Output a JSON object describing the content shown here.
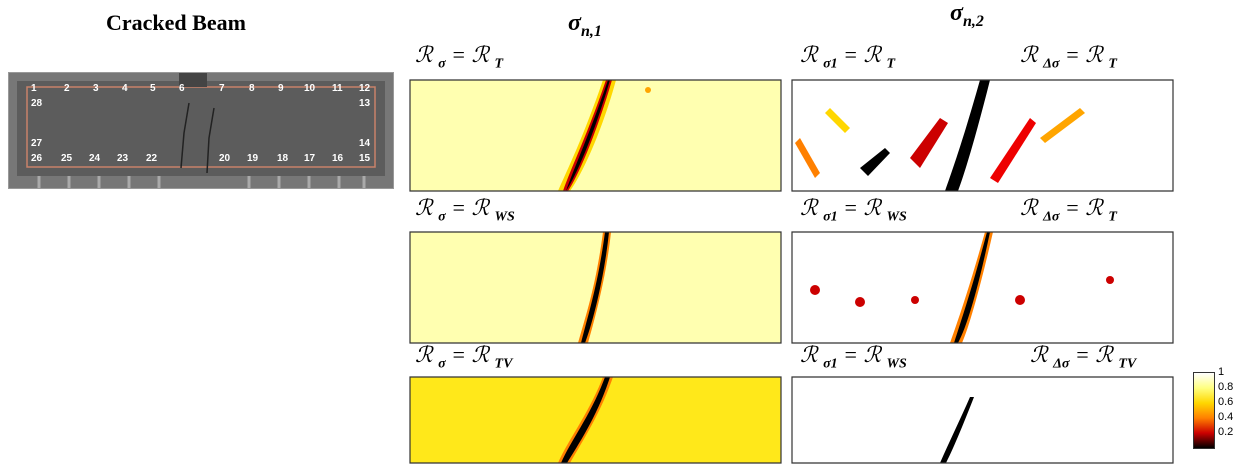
{
  "titles": {
    "cracked_beam": "Cracked Beam",
    "col1": "σ",
    "col1_sub": "n,1",
    "col2": "σ",
    "col2_sub": "n,2"
  },
  "beam_nodes": [
    "1",
    "2",
    "3",
    "4",
    "5",
    "6",
    "7",
    "8",
    "9",
    "10",
    "11",
    "12",
    "13",
    "14",
    "15",
    "16",
    "17",
    "18",
    "19",
    "20",
    "22",
    "23",
    "24",
    "25",
    "26",
    "27",
    "28"
  ],
  "panel_labels": {
    "r_sym": "ℛ",
    "sigma": "σ",
    "sigma1": "σ",
    "sigma1_sub": "1",
    "dsigma": "Δσ",
    "eq": "=",
    "T": "T",
    "WS": "WS",
    "TV": "TV"
  },
  "colorbar": {
    "ticks": [
      "1",
      "0.8",
      "0.6",
      "0.4",
      "0.2"
    ],
    "colors": [
      "#ffffff",
      "#ffff80",
      "#ffd700",
      "#ff8000",
      "#cc0000",
      "#000000"
    ]
  }
}
